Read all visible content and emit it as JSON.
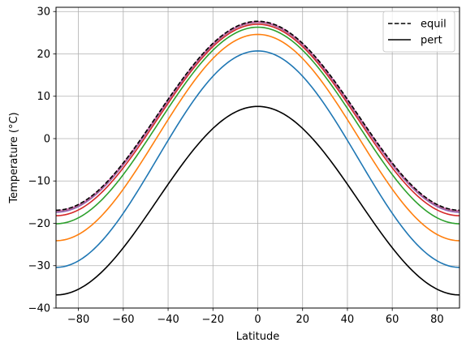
{
  "chart_data": {
    "type": "line",
    "title": "",
    "xlabel": "Latitude",
    "ylabel": "Temperature (°C)",
    "xlim": [
      -90,
      90
    ],
    "ylim": [
      -40,
      31
    ],
    "xticks": [
      -80,
      -60,
      -40,
      -20,
      0,
      20,
      40,
      60,
      80
    ],
    "xtick_labels": [
      "−80",
      "−60",
      "−40",
      "−20",
      "0",
      "20",
      "40",
      "60",
      "80"
    ],
    "yticks": [
      -40,
      -30,
      -20,
      -10,
      0,
      10,
      20,
      30
    ],
    "ytick_labels": [
      "−40",
      "−30",
      "−20",
      "−10",
      "0",
      "10",
      "20",
      "30"
    ],
    "grid": true,
    "legend_position": "top-right",
    "legend": [
      {
        "label": "equil",
        "style": "dashed",
        "color": "#000000"
      },
      {
        "label": "pert",
        "style": "solid",
        "color": "#000000"
      }
    ],
    "series": [
      {
        "name": "pert",
        "color": "#000000",
        "style": "solid",
        "equator": 7.6,
        "pole": -36.9
      },
      {
        "color": "#1f77b4",
        "style": "solid",
        "equator": 20.7,
        "pole": -30.4
      },
      {
        "color": "#ff7f0e",
        "style": "solid",
        "equator": 24.6,
        "pole": -24.1
      },
      {
        "color": "#2ca02c",
        "style": "solid",
        "equator": 26.3,
        "pole": -20.1
      },
      {
        "color": "#d62728",
        "style": "solid",
        "equator": 27.0,
        "pole": -18.2
      },
      {
        "color": "#9467bd",
        "style": "solid",
        "equator": 27.4,
        "pole": -17.4
      },
      {
        "color": "#8c564b",
        "style": "solid",
        "equator": 27.5,
        "pole": -17.1
      },
      {
        "color": "#e377c2",
        "style": "solid",
        "equator": 27.6,
        "pole": -17.0
      },
      {
        "name": "equil",
        "color": "#000000",
        "style": "dashed",
        "equator": 27.7,
        "pole": -16.9
      }
    ]
  }
}
